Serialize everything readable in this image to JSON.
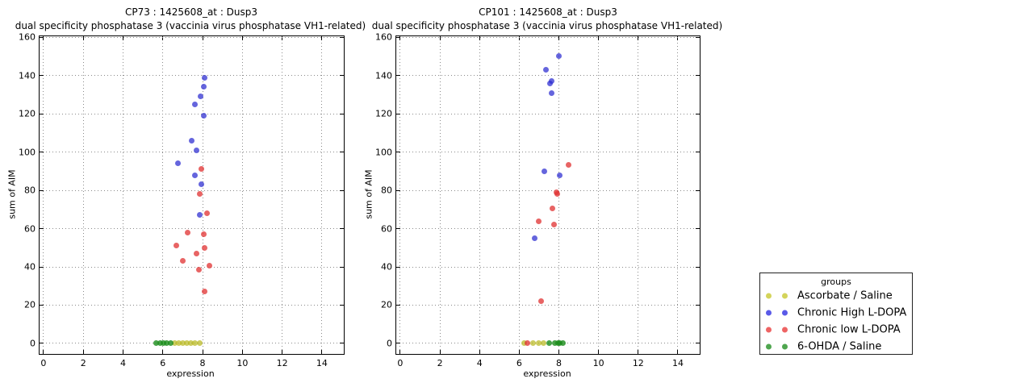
{
  "page": {
    "background": "#ffffff"
  },
  "legend": {
    "title": "groups",
    "items": [
      {
        "label": "Ascorbate / Saline",
        "color": "#d4d45a"
      },
      {
        "label": "Chronic High L-DOPA",
        "color": "#5a5ae8"
      },
      {
        "label": "Chronic low L-DOPA",
        "color": "#ee6464"
      },
      {
        "label": "6-OHDA / Saline",
        "color": "#4fa64f"
      }
    ]
  },
  "chart_data": [
    {
      "type": "scatter",
      "title": "CP73 : 1425608_at : Dusp3",
      "subtitle": "dual specificity phosphatase 3 (vaccinia virus phosphatase VH1-related)",
      "xlabel": "expression",
      "ylabel": "sum of AIM",
      "xlim": [
        -0.2,
        15.1
      ],
      "ylim": [
        -5.5,
        160.5
      ],
      "xticks": [
        0,
        2,
        4,
        6,
        8,
        10,
        12,
        14
      ],
      "yticks": [
        0,
        20,
        40,
        60,
        80,
        100,
        120,
        140,
        160
      ],
      "grid": true,
      "legend_position": "outside-right",
      "series": [
        {
          "name": "Ascorbate / Saline",
          "color": "rgba(184,184,32,0.72)",
          "points": [
            [
              6.58,
              0
            ],
            [
              6.79,
              0
            ],
            [
              7.0,
              0
            ],
            [
              7.21,
              0
            ],
            [
              7.42,
              0
            ],
            [
              7.63,
              0
            ],
            [
              7.84,
              0
            ]
          ]
        },
        {
          "name": "Chronic High L-DOPA",
          "color": "rgba(42,42,208,0.72)",
          "points": [
            [
              8.1,
              139
            ],
            [
              8.05,
              134
            ],
            [
              7.88,
              129
            ],
            [
              7.61,
              125
            ],
            [
              8.06,
              119
            ],
            [
              7.46,
              106
            ],
            [
              7.7,
              101
            ],
            [
              6.77,
              94
            ],
            [
              7.6,
              88
            ],
            [
              7.94,
              83
            ],
            [
              7.84,
              67
            ]
          ]
        },
        {
          "name": "Chronic low L-DOPA",
          "color": "rgba(224,48,48,0.75)",
          "points": [
            [
              7.95,
              91
            ],
            [
              7.86,
              78
            ],
            [
              8.24,
              68
            ],
            [
              7.25,
              58
            ],
            [
              8.04,
              57
            ],
            [
              6.68,
              51
            ],
            [
              8.08,
              50
            ],
            [
              7.7,
              47
            ],
            [
              7.01,
              43
            ],
            [
              8.33,
              40.5
            ],
            [
              7.8,
              38.5
            ],
            [
              8.08,
              27
            ]
          ]
        },
        {
          "name": "6-OHDA / Saline",
          "color": "rgba(26,140,26,0.8)",
          "points": [
            [
              5.67,
              0
            ],
            [
              5.85,
              0
            ],
            [
              6.03,
              0
            ],
            [
              6.21,
              0
            ],
            [
              6.39,
              0
            ]
          ]
        }
      ]
    },
    {
      "type": "scatter",
      "title": "CP101 : 1425608_at : Dusp3",
      "subtitle": "dual specificity phosphatase 3 (vaccinia virus phosphatase VH1-related)",
      "xlabel": "expression",
      "ylabel": "sum of AIM",
      "xlim": [
        -0.2,
        15.1
      ],
      "ylim": [
        -5.5,
        160.5
      ],
      "xticks": [
        0,
        2,
        4,
        6,
        8,
        10,
        12,
        14
      ],
      "yticks": [
        0,
        20,
        40,
        60,
        80,
        100,
        120,
        140,
        160
      ],
      "grid": true,
      "series": [
        {
          "name": "Ascorbate / Saline",
          "color": "rgba(184,184,32,0.72)",
          "points": [
            [
              6.23,
              0
            ],
            [
              6.71,
              0
            ],
            [
              7.0,
              0
            ],
            [
              7.22,
              0
            ]
          ]
        },
        {
          "name": "Chronic High L-DOPA",
          "color": "rgba(42,42,208,0.72)",
          "points": [
            [
              8.0,
              150
            ],
            [
              7.35,
              143
            ],
            [
              7.65,
              137
            ],
            [
              7.56,
              136
            ],
            [
              7.63,
              131
            ],
            [
              7.28,
              90
            ],
            [
              8.03,
              88
            ],
            [
              6.79,
              55
            ]
          ]
        },
        {
          "name": "Chronic low L-DOPA",
          "color": "rgba(224,48,48,0.75)",
          "points": [
            [
              8.48,
              93.5
            ],
            [
              7.88,
              79
            ],
            [
              7.92,
              78
            ],
            [
              7.69,
              70.5
            ],
            [
              7.0,
              64
            ],
            [
              7.75,
              62
            ],
            [
              7.11,
              22
            ],
            [
              6.41,
              0
            ]
          ]
        },
        {
          "name": "6-OHDA / Saline",
          "color": "rgba(26,140,26,0.8)",
          "points": [
            [
              7.52,
              0
            ],
            [
              7.79,
              0
            ],
            [
              7.95,
              0
            ],
            [
              8.05,
              0
            ],
            [
              8.19,
              0
            ]
          ]
        }
      ]
    }
  ]
}
